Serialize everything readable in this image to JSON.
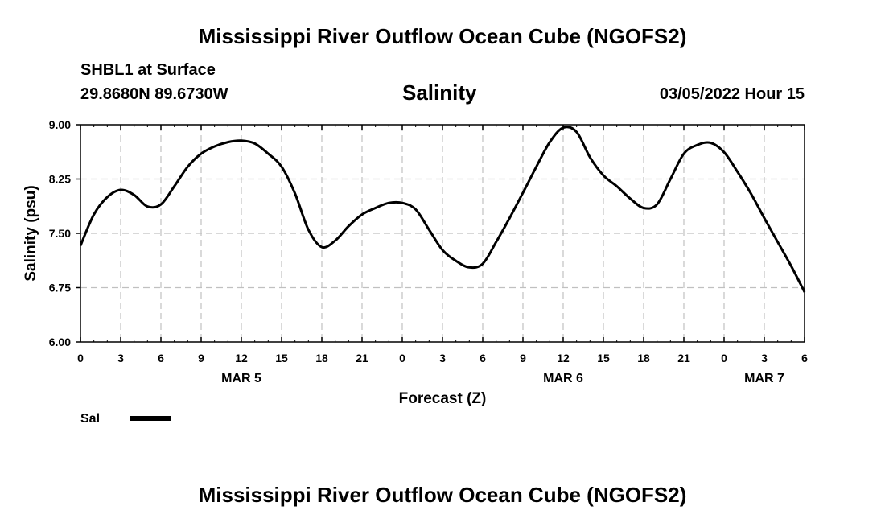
{
  "title": "Mississippi River Outflow Ocean Cube (NGOFS2)",
  "bottom_title": "Mississippi River Outflow Ocean Cube (NGOFS2)",
  "station": "SHBL1 at Surface",
  "coords": "29.8680N  89.6730W",
  "datetime": "03/05/2022 Hour 15",
  "colors": {
    "line": "#000000",
    "grid": "#c0c0c0"
  },
  "chart_data": {
    "type": "line",
    "title": "Salinity",
    "xlabel": "Forecast (Z)",
    "ylabel": "Salinity (psu)",
    "ylim": [
      6.0,
      9.0
    ],
    "yticks": [
      "6.00",
      "6.75",
      "7.50",
      "8.25",
      "9.00"
    ],
    "xlim": [
      0,
      54
    ],
    "xtick_labels": [
      "0",
      "3",
      "6",
      "9",
      "12",
      "15",
      "18",
      "21",
      "0",
      "3",
      "6",
      "9",
      "12",
      "15",
      "18",
      "21",
      "0",
      "3",
      "6"
    ],
    "date_labels": [
      {
        "text": "MAR 5",
        "x": 12
      },
      {
        "text": "MAR 6",
        "x": 36
      },
      {
        "text": "MAR 7",
        "x": 51
      }
    ],
    "grid": true,
    "legend": "bottom-left",
    "series": [
      {
        "name": "Sal",
        "x": [
          0,
          1,
          2,
          3,
          4,
          5,
          6,
          7,
          8,
          9,
          10,
          11,
          12,
          13,
          14,
          15,
          16,
          17,
          18,
          19,
          20,
          21,
          22,
          23,
          24,
          25,
          26,
          27,
          28,
          29,
          30,
          31,
          32,
          33,
          34,
          35,
          36,
          37,
          38,
          39,
          40,
          41,
          42,
          43,
          44,
          45,
          46,
          47,
          48,
          49,
          50,
          51,
          52,
          53,
          54
        ],
        "values": [
          7.33,
          7.76,
          8.0,
          8.1,
          8.03,
          7.87,
          7.9,
          8.15,
          8.42,
          8.6,
          8.7,
          8.76,
          8.78,
          8.74,
          8.6,
          8.42,
          8.05,
          7.55,
          7.31,
          7.4,
          7.6,
          7.76,
          7.85,
          7.92,
          7.92,
          7.83,
          7.55,
          7.27,
          7.12,
          7.03,
          7.08,
          7.38,
          7.71,
          8.06,
          8.42,
          8.76,
          8.96,
          8.9,
          8.55,
          8.3,
          8.15,
          7.98,
          7.85,
          7.9,
          8.25,
          8.6,
          8.72,
          8.75,
          8.62,
          8.35,
          8.05,
          7.71,
          7.38,
          7.05,
          6.69
        ]
      }
    ]
  }
}
